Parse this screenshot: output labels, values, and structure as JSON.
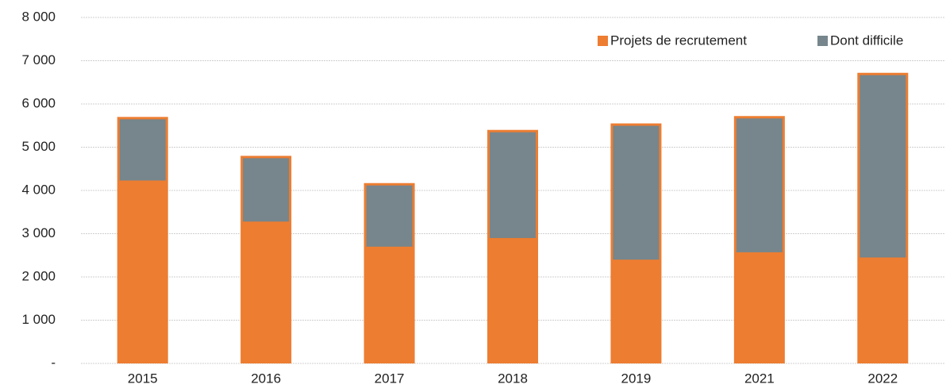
{
  "chart_data": {
    "type": "bar",
    "categories": [
      "2015",
      "2016",
      "2017",
      "2018",
      "2019",
      "2021",
      "2022"
    ],
    "series": [
      {
        "name": "Projets de recrutement",
        "color": "#ed7d31",
        "values": [
          5700,
          4800,
          4170,
          5400,
          5550,
          5720,
          6720
        ]
      },
      {
        "name": "Dont difficile",
        "color": "#76868c",
        "values": [
          1470,
          1520,
          1470,
          2500,
          3150,
          3150,
          4270
        ]
      }
    ],
    "ylim": [
      0,
      8000
    ],
    "yticks": [
      {
        "value": 0,
        "label": "-"
      },
      {
        "value": 1000,
        "label": "1 000"
      },
      {
        "value": 2000,
        "label": "2 000"
      },
      {
        "value": 3000,
        "label": "3 000"
      },
      {
        "value": 4000,
        "label": "4 000"
      },
      {
        "value": 5000,
        "label": "5 000"
      },
      {
        "value": 6000,
        "label": "6 000"
      },
      {
        "value": 7000,
        "label": "7 000"
      },
      {
        "value": 8000,
        "label": "8 000"
      }
    ],
    "grid": true,
    "legend": "top-right"
  }
}
